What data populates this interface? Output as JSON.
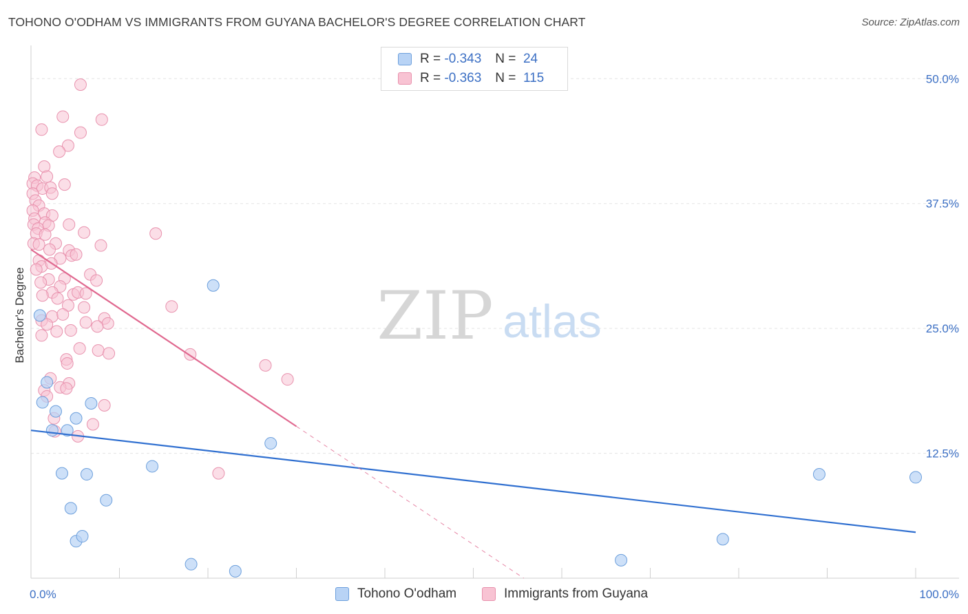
{
  "title": "TOHONO O'ODHAM VS IMMIGRANTS FROM GUYANA BACHELOR'S DEGREE CORRELATION CHART",
  "source": "Source: ZipAtlas.com",
  "watermark": {
    "zip": "ZIP",
    "atlas": "atlas"
  },
  "legend": {
    "rows": [
      {
        "r_label": "R =",
        "r_value": "-0.343",
        "n_label": "N =",
        "n_value": "24"
      },
      {
        "r_label": "R =",
        "r_value": "-0.363",
        "n_label": "N =",
        "n_value": "115"
      }
    ]
  },
  "bottom_legend": [
    "Tohono O'odham",
    "Immigrants from Guyana"
  ],
  "colors": {
    "blue_fill": "#b8d3f5",
    "blue_stroke": "#6c9fdc",
    "blue_line": "#2f6fd0",
    "pink_fill": "#f8c3d3",
    "pink_stroke": "#e891ad",
    "pink_line": "#e0688f",
    "tick_label": "#3b6fc4",
    "grid": "#e3e3e3"
  },
  "chart_data": {
    "type": "scatter",
    "title": "TOHONO O'ODHAM VS IMMIGRANTS FROM GUYANA BACHELOR'S DEGREE CORRELATION CHART",
    "xlabel": "",
    "ylabel": "Bachelor's Degree",
    "xlim": [
      0,
      100
    ],
    "ylim": [
      0,
      52.5
    ],
    "x_tick_labels": [
      "0.0%",
      "100.0%"
    ],
    "y_ticks": [
      12.5,
      25.0,
      37.5,
      50.0
    ],
    "y_tick_labels": [
      "12.5%",
      "25.0%",
      "37.5%",
      "50.0%"
    ],
    "grid": true,
    "legend_position": "top-center",
    "series": [
      {
        "name": "Tohono O'odham",
        "R": -0.343,
        "N": 24,
        "trend": {
          "x0": 0,
          "y0": 14.8,
          "x1": 100,
          "y1": 4.6,
          "dashed_to": null
        },
        "points": [
          [
            1.0,
            26.3
          ],
          [
            1.3,
            17.6
          ],
          [
            1.8,
            19.6
          ],
          [
            2.4,
            14.8
          ],
          [
            2.8,
            16.7
          ],
          [
            3.5,
            10.5
          ],
          [
            4.1,
            14.8
          ],
          [
            4.5,
            7.0
          ],
          [
            5.1,
            3.7
          ],
          [
            5.8,
            4.2
          ],
          [
            6.3,
            10.4
          ],
          [
            5.1,
            16.0
          ],
          [
            6.8,
            17.5
          ],
          [
            8.5,
            7.8
          ],
          [
            13.7,
            11.2
          ],
          [
            18.1,
            1.4
          ],
          [
            20.6,
            29.3
          ],
          [
            23.1,
            0.7
          ],
          [
            27.1,
            13.5
          ],
          [
            66.7,
            1.8
          ],
          [
            78.2,
            3.9
          ],
          [
            89.1,
            10.4
          ],
          [
            100.0,
            10.1
          ]
        ]
      },
      {
        "name": "Immigrants from Guyana",
        "R": -0.363,
        "N": 115,
        "trend": {
          "x0": 0,
          "y0": 32.9,
          "x1": 30,
          "y1": 15.2,
          "dash_x1": 55.7,
          "dash_y1": 0.0
        },
        "points": [
          [
            5.6,
            49.4
          ],
          [
            1.2,
            44.9
          ],
          [
            3.6,
            46.2
          ],
          [
            8.0,
            45.9
          ],
          [
            5.6,
            44.6
          ],
          [
            4.2,
            43.3
          ],
          [
            3.2,
            42.7
          ],
          [
            1.5,
            41.2
          ],
          [
            0.4,
            40.1
          ],
          [
            1.8,
            40.2
          ],
          [
            0.2,
            39.5
          ],
          [
            0.7,
            39.3
          ],
          [
            1.3,
            39.0
          ],
          [
            2.2,
            39.1
          ],
          [
            3.8,
            39.4
          ],
          [
            0.2,
            38.5
          ],
          [
            2.4,
            38.5
          ],
          [
            0.5,
            37.8
          ],
          [
            0.9,
            37.3
          ],
          [
            0.2,
            36.8
          ],
          [
            1.5,
            36.5
          ],
          [
            2.4,
            36.3
          ],
          [
            0.4,
            36.0
          ],
          [
            1.6,
            35.6
          ],
          [
            0.3,
            35.4
          ],
          [
            0.8,
            35.0
          ],
          [
            2.0,
            35.3
          ],
          [
            4.3,
            35.4
          ],
          [
            6.0,
            34.6
          ],
          [
            14.1,
            34.5
          ],
          [
            0.6,
            34.5
          ],
          [
            1.6,
            34.4
          ],
          [
            0.3,
            33.5
          ],
          [
            2.8,
            33.5
          ],
          [
            0.9,
            33.4
          ],
          [
            7.9,
            33.3
          ],
          [
            2.1,
            32.9
          ],
          [
            4.3,
            32.8
          ],
          [
            4.6,
            32.3
          ],
          [
            5.1,
            32.4
          ],
          [
            0.9,
            31.8
          ],
          [
            3.3,
            32.0
          ],
          [
            1.2,
            31.2
          ],
          [
            2.3,
            31.5
          ],
          [
            0.6,
            30.9
          ],
          [
            3.8,
            30.0
          ],
          [
            6.7,
            30.4
          ],
          [
            2.0,
            29.9
          ],
          [
            7.4,
            29.8
          ],
          [
            1.1,
            29.6
          ],
          [
            3.3,
            29.2
          ],
          [
            2.4,
            28.6
          ],
          [
            4.8,
            28.4
          ],
          [
            5.3,
            28.6
          ],
          [
            6.2,
            28.5
          ],
          [
            1.3,
            28.3
          ],
          [
            3.0,
            28.0
          ],
          [
            4.2,
            27.3
          ],
          [
            15.9,
            27.2
          ],
          [
            6.0,
            27.1
          ],
          [
            2.4,
            26.2
          ],
          [
            3.6,
            26.4
          ],
          [
            8.3,
            26.0
          ],
          [
            1.2,
            25.8
          ],
          [
            6.2,
            25.6
          ],
          [
            1.8,
            25.4
          ],
          [
            8.7,
            25.5
          ],
          [
            7.5,
            25.2
          ],
          [
            2.9,
            24.7
          ],
          [
            4.5,
            24.8
          ],
          [
            1.2,
            24.3
          ],
          [
            5.5,
            23.0
          ],
          [
            7.6,
            22.8
          ],
          [
            8.8,
            22.5
          ],
          [
            18.0,
            22.4
          ],
          [
            4.0,
            21.9
          ],
          [
            4.1,
            21.5
          ],
          [
            26.5,
            21.3
          ],
          [
            2.2,
            20.0
          ],
          [
            4.3,
            19.5
          ],
          [
            29.0,
            19.9
          ],
          [
            3.3,
            19.1
          ],
          [
            4.0,
            19.0
          ],
          [
            1.5,
            18.8
          ],
          [
            1.8,
            18.2
          ],
          [
            8.3,
            17.3
          ],
          [
            2.6,
            16.0
          ],
          [
            7.0,
            15.4
          ],
          [
            2.7,
            14.7
          ],
          [
            5.3,
            14.2
          ],
          [
            21.2,
            10.5
          ]
        ]
      }
    ]
  }
}
